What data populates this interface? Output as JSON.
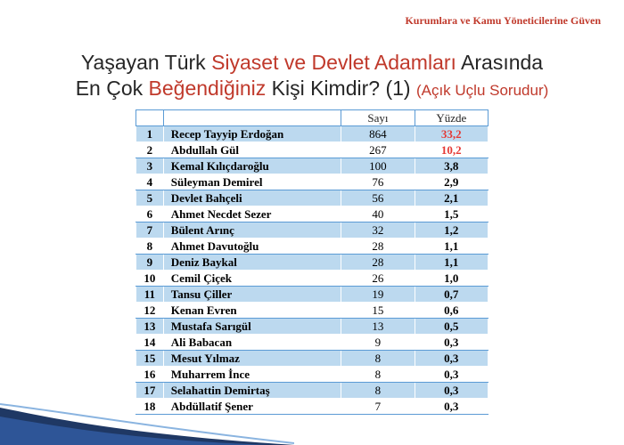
{
  "header_tag": "Kurumlara ve Kamu Yöneticilerine Güven",
  "title": {
    "line1_a": "Yaşayan Türk ",
    "line1_red": "Siyaset ve Devlet Adamları",
    "line1_b": " Arasında",
    "line2_a": "En Çok ",
    "line2_red": "Beğendiğiniz",
    "line2_b": " Kişi Kimdir? (1) ",
    "line2_small": "(Açık Uçlu Sorudur)"
  },
  "table": {
    "headers": [
      "",
      "",
      "Sayı",
      "Yüzde"
    ],
    "rows": [
      {
        "no": "1",
        "name": "Recep Tayyip Erdoğan",
        "sayi": "864",
        "yuzde": "33,2",
        "highlight": true
      },
      {
        "no": "2",
        "name": "Abdullah Gül",
        "sayi": "267",
        "yuzde": "10,2",
        "highlight": true
      },
      {
        "no": "3",
        "name": "Kemal Kılıçdaroğlu",
        "sayi": "100",
        "yuzde": "3,8"
      },
      {
        "no": "4",
        "name": "Süleyman Demirel",
        "sayi": "76",
        "yuzde": "2,9"
      },
      {
        "no": "5",
        "name": "Devlet Bahçeli",
        "sayi": "56",
        "yuzde": "2,1"
      },
      {
        "no": "6",
        "name": "Ahmet Necdet Sezer",
        "sayi": "40",
        "yuzde": "1,5"
      },
      {
        "no": "7",
        "name": "Bülent Arınç",
        "sayi": "32",
        "yuzde": "1,2"
      },
      {
        "no": "8",
        "name": "Ahmet Davutoğlu",
        "sayi": "28",
        "yuzde": "1,1"
      },
      {
        "no": "9",
        "name": "Deniz Baykal",
        "sayi": "28",
        "yuzde": "1,1"
      },
      {
        "no": "10",
        "name": "Cemil Çiçek",
        "sayi": "26",
        "yuzde": "1,0"
      },
      {
        "no": "11",
        "name": "Tansu Çiller",
        "sayi": "19",
        "yuzde": "0,7"
      },
      {
        "no": "12",
        "name": "Kenan Evren",
        "sayi": "15",
        "yuzde": "0,6"
      },
      {
        "no": "13",
        "name": "Mustafa Sarıgül",
        "sayi": "13",
        "yuzde": "0,5"
      },
      {
        "no": "14",
        "name": "Ali Babacan",
        "sayi": "9",
        "yuzde": "0,3"
      },
      {
        "no": "15",
        "name": "Mesut Yılmaz",
        "sayi": "8",
        "yuzde": "0,3"
      },
      {
        "no": "16",
        "name": "Muharrem İnce",
        "sayi": "8",
        "yuzde": "0,3"
      },
      {
        "no": "17",
        "name": "Selahattin Demirtaş",
        "sayi": "8",
        "yuzde": "0,3"
      },
      {
        "no": "18",
        "name": "Abdüllatif Şener",
        "sayi": "7",
        "yuzde": "0,3"
      }
    ]
  },
  "colors": {
    "accent_red": "#c0392b",
    "value_red": "#e53935",
    "row_blue": "#bcd9ef",
    "border_blue": "#5b9bd5",
    "swoosh_navy": "#1f3864"
  }
}
